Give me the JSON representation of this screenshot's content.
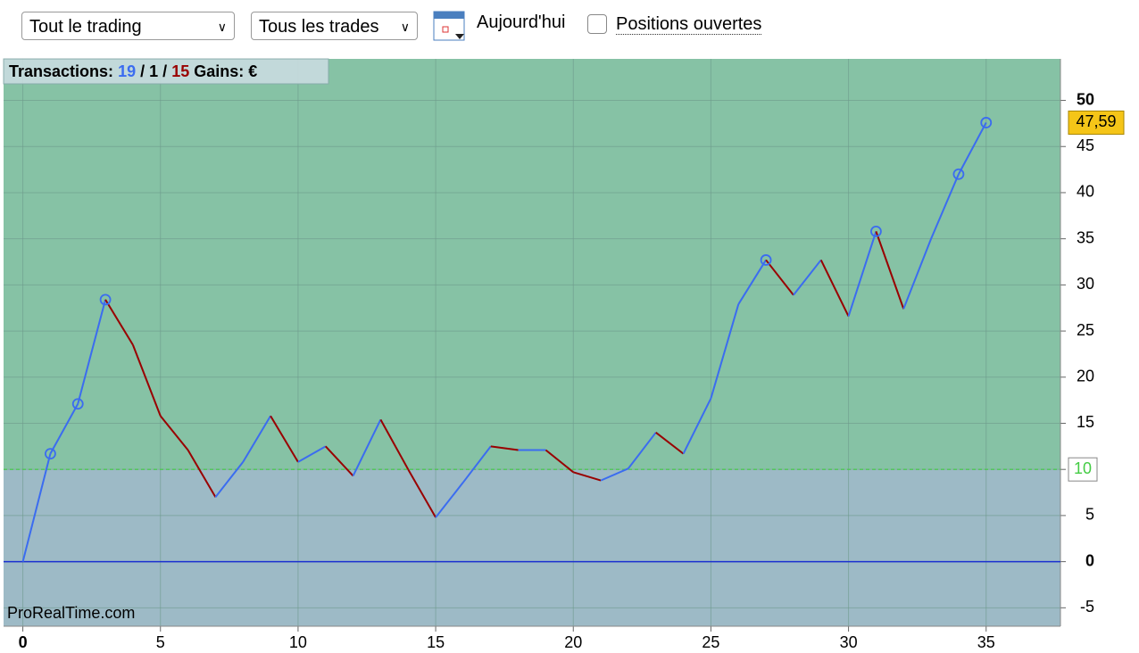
{
  "toolbar": {
    "select_1": "Tout le trading",
    "select_2": "Tous les trades",
    "today": "Aujourd'hui",
    "open_positions": "Positions ouvertes"
  },
  "chart_data": {
    "type": "line",
    "header": {
      "label": "Transactions:",
      "wins": 19,
      "neutral": 1,
      "losses": 15,
      "separator": "/",
      "gains": "Gains: €"
    },
    "watermark": "ProRealTime.com",
    "x": [
      0,
      1,
      2,
      3,
      4,
      5,
      6,
      7,
      8,
      9,
      10,
      11,
      12,
      13,
      14,
      15,
      16,
      17,
      18,
      19,
      20,
      21,
      22,
      23,
      24,
      25,
      26,
      27,
      28,
      29,
      30,
      31,
      32,
      33,
      34,
      35
    ],
    "series": [
      {
        "values": [
          0,
          11.7,
          17.1,
          28.4,
          23.5,
          15.8,
          12.1,
          7.0,
          10.8,
          15.8,
          10.8,
          12.5,
          9.3,
          15.4,
          10.0,
          4.8,
          8.6,
          12.5,
          12.1,
          12.1,
          9.7,
          8.8,
          10.1,
          14.0,
          11.7,
          17.7,
          27.9,
          32.7,
          28.9,
          32.7,
          26.6,
          35.8,
          27.4,
          35.0,
          42.0,
          47.59
        ],
        "up_color": "#3b6cf0",
        "down_color": "#990000",
        "current_label": "47,59"
      }
    ],
    "threshold": 10,
    "threshold_color": "#44cc44",
    "zero_color": "#1a2fd0",
    "above_color": "#86c2a5",
    "below_color": "#9dbac6",
    "xlim": [
      -0.7,
      37.7
    ],
    "ylim": [
      -7,
      54.5
    ],
    "xticks": [
      0,
      5,
      10,
      15,
      20,
      25,
      30,
      35
    ],
    "yticks": [
      -5,
      0,
      5,
      10,
      15,
      20,
      25,
      30,
      35,
      40,
      45,
      50
    ],
    "grid": true
  }
}
